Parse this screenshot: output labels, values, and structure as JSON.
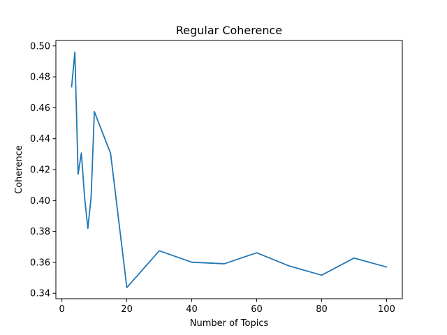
{
  "chart_data": {
    "type": "line",
    "title": "Regular Coherence",
    "xlabel": "Number of Topics",
    "ylabel": "Coherence",
    "xlim": [
      -1.85,
      104.85
    ],
    "ylim": [
      0.3365,
      0.5035
    ],
    "xticks": [
      0,
      20,
      40,
      60,
      80,
      100
    ],
    "xtick_labels": [
      "0",
      "20",
      "40",
      "60",
      "80",
      "100"
    ],
    "yticks": [
      0.34,
      0.36,
      0.38,
      0.4,
      0.42,
      0.44,
      0.46,
      0.48,
      0.5
    ],
    "ytick_labels": [
      "0.34",
      "0.36",
      "0.38",
      "0.40",
      "0.42",
      "0.44",
      "0.46",
      "0.48",
      "0.50"
    ],
    "grid": false,
    "series": [
      {
        "color": "#1f77b4",
        "x": [
          3,
          4,
          5,
          6,
          7,
          8,
          9,
          10,
          15,
          20,
          30,
          40,
          50,
          60,
          70,
          80,
          90,
          100
        ],
        "y": [
          0.4735,
          0.496,
          0.417,
          0.4307,
          0.402,
          0.382,
          0.402,
          0.4575,
          0.4305,
          0.3437,
          0.3675,
          0.3601,
          0.3591,
          0.3662,
          0.3577,
          0.3517,
          0.3628,
          0.357
        ]
      }
    ]
  }
}
